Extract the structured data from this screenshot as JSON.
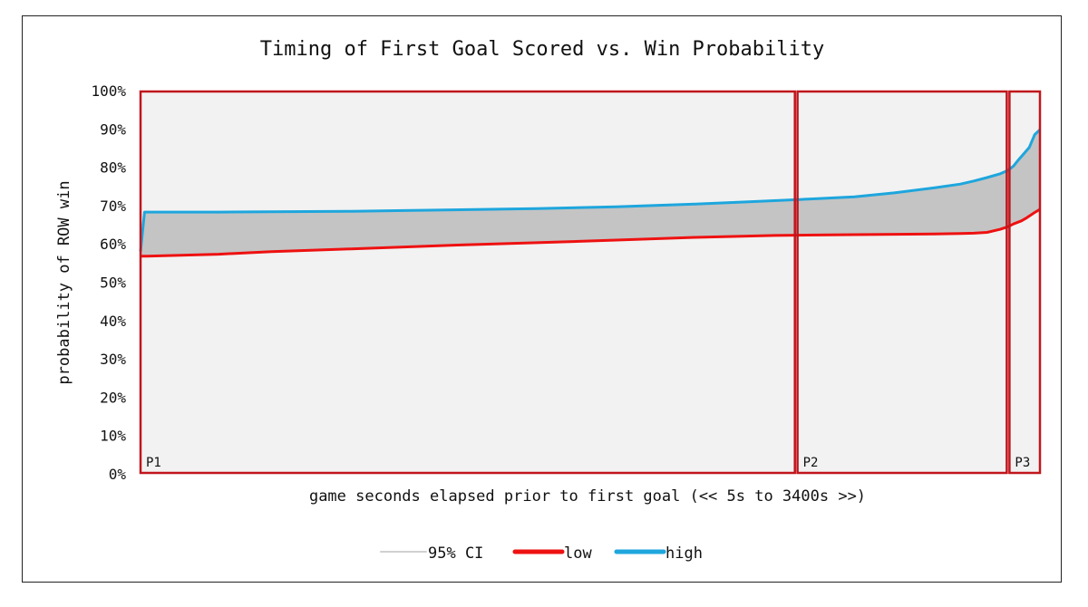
{
  "chart_data": {
    "type": "area",
    "title": "Timing of First Goal Scored vs. Win Probability",
    "xlabel": "game seconds elapsed prior to first goal (<< 5s to 3400s >>)",
    "ylabel": "probability of ROW win",
    "xlim": [
      5,
      3400
    ],
    "ylim": [
      0,
      100
    ],
    "y_ticks": [
      "0%",
      "10%",
      "20%",
      "30%",
      "40%",
      "50%",
      "60%",
      "70%",
      "80%",
      "90%",
      "100%"
    ],
    "grid": false,
    "plot_background": "#f2f2f2",
    "legend_position": "bottom",
    "legend": [
      {
        "name": "95% CI",
        "color": "#d0d0d0"
      },
      {
        "name": "low",
        "color": "#ee1111"
      },
      {
        "name": "high",
        "color": "#1ea6dd"
      }
    ],
    "series": [
      {
        "name": "low",
        "color": "#ee1111",
        "x": [
          5,
          30,
          300,
          500,
          800,
          1000,
          1200,
          1500,
          1800,
          2100,
          2400,
          2700,
          3000,
          3100,
          3150,
          3200,
          3250,
          3280,
          3300,
          3330,
          3350,
          3380,
          3400
        ],
        "y": [
          56.8,
          56.8,
          57.3,
          58.0,
          58.7,
          59.2,
          59.7,
          60.3,
          61.0,
          61.7,
          62.2,
          62.4,
          62.6,
          62.7,
          62.8,
          63.0,
          63.8,
          64.5,
          65.2,
          66.0,
          66.8,
          68.2,
          69.0
        ]
      },
      {
        "name": "high",
        "color": "#1ea6dd",
        "x": [
          5,
          20,
          300,
          800,
          1000,
          1500,
          1800,
          2100,
          2300,
          2500,
          2700,
          2850,
          3000,
          3100,
          3150,
          3200,
          3250,
          3280,
          3300,
          3320,
          3340,
          3360,
          3380,
          3400
        ],
        "y": [
          58.0,
          68.3,
          68.3,
          68.5,
          68.7,
          69.2,
          69.7,
          70.4,
          71.0,
          71.6,
          72.3,
          73.3,
          74.6,
          75.6,
          76.4,
          77.3,
          78.3,
          79.2,
          80.3,
          82.0,
          83.6,
          85.2,
          88.5,
          89.8
        ]
      }
    ],
    "periods": [
      {
        "label": "P1",
        "x_start": 5,
        "x_end": 2475
      },
      {
        "label": "P2",
        "x_start": 2485,
        "x_end": 3275
      },
      {
        "label": "P3",
        "x_start": 3285,
        "x_end": 3400
      }
    ]
  }
}
